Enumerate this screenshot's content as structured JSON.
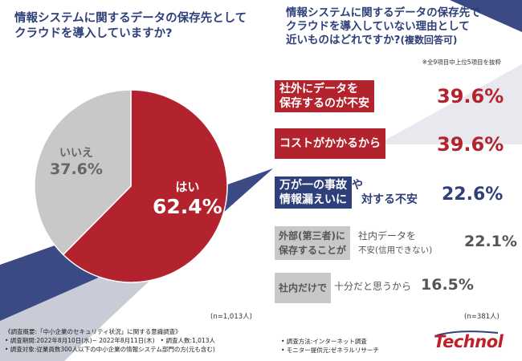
{
  "colors": {
    "red": "#b3232d",
    "navy": "#2e3f7a",
    "gray": "#c8c8c8",
    "stripe": "#3b4a85"
  },
  "left_title": "情報システムに関するデータの保存先として\nクラウドを導入していますか?",
  "right_title_line1": "情報システムに関するデータの保存先で",
  "right_title_line2": "クラウドを導入していない理由として",
  "right_title_line3": "近いものはどれですか?",
  "right_title_suffix": "(複数回答可)",
  "note": "※全9項目中上位5項目を抜粋",
  "n_left": "(n=1,013人)",
  "n_right": "(n=381人)",
  "chart_data": [
    {
      "type": "pie",
      "title": "情報システムに関するデータの保存先としてクラウドを導入していますか?",
      "slices": [
        {
          "label": "はい",
          "value": 62.4,
          "display": "62.4%"
        },
        {
          "label": "いいえ",
          "value": 37.6,
          "display": "37.6%"
        }
      ]
    },
    {
      "type": "bar",
      "title": "情報システムに関するデータの保存先でクラウドを導入していない理由として近いものはどれですか?(複数回答可)",
      "categories": [
        "社外にデータを保存するのが不安",
        "コストがかかるから",
        "万が一の事故や情報漏えいに対する不安",
        "外部(第三者)に社内データを保存することが不安(信用できない)",
        "社内だけで十分だと思うから"
      ],
      "values": [
        39.6,
        39.6,
        22.6,
        22.1,
        16.5
      ]
    }
  ],
  "bars": [
    {
      "l1": "社外にデータを",
      "l2": "保存するのが不安",
      "rest1": "",
      "rest2": "",
      "display": "39.6%"
    },
    {
      "l1": "コストがかかるから",
      "l2": "",
      "rest1": "",
      "rest2": "",
      "display": "39.6%"
    },
    {
      "l1": "万が一の事故",
      "l2": "情報漏えいに",
      "rest1": "や",
      "rest2": "対する不安",
      "display": "22.6%"
    },
    {
      "l1": "外部(第三者)に",
      "l2": "保存することが",
      "rest1": "社内データを",
      "rest2": "不安(信用できない)",
      "display": "22.1%"
    },
    {
      "l1": "社内だけで",
      "l2": "",
      "rest1": "十分だと思うから",
      "rest2": "",
      "display": "16.5%"
    }
  ],
  "footer": {
    "line1": "《調査概要:「中小企業のセキュリティ状況」に関する意識調査》",
    "line2a": "• 調査期間:2022年8月10日(水)~ 2022年8月11日(木)",
    "line2b": "• 調査人数:1,013人",
    "line3": "• 調査対象:従業員数300人以下の中小企業の情報システム部門の方(元も含む)",
    "method": "• 調査方法:インターネット調査",
    "provider": "• モニター提供元:ゼネラルリサーチ"
  },
  "logo": "Technol"
}
